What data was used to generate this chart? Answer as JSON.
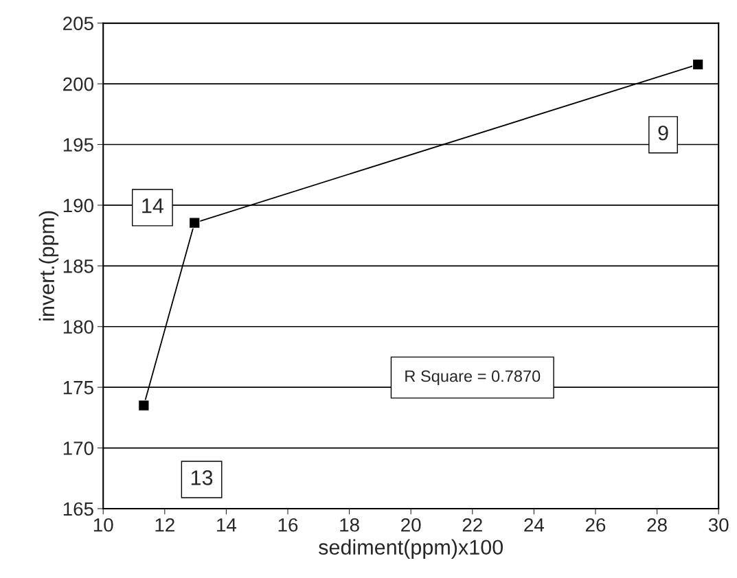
{
  "chart_data": {
    "type": "line",
    "xlabel": "sediment(ppm)x100",
    "ylabel": "invert.(ppm)",
    "x": [
      11.32,
      12.97,
      29.33
    ],
    "series": [
      {
        "color": "#000000",
        "values": [
          173.5,
          188.55,
          201.6
        ]
      }
    ],
    "marker": "square",
    "line_style": "solid",
    "grid": "y",
    "xlim": [
      10,
      30
    ],
    "xticks": [
      10,
      12,
      14,
      16,
      18,
      20,
      22,
      24,
      26,
      28,
      30
    ],
    "ylim": [
      165,
      205
    ],
    "yticks": [
      165,
      170,
      175,
      180,
      185,
      190,
      195,
      200,
      205
    ],
    "annotations": [
      "13",
      "14",
      "9",
      "R Square = 0.7870"
    ]
  }
}
